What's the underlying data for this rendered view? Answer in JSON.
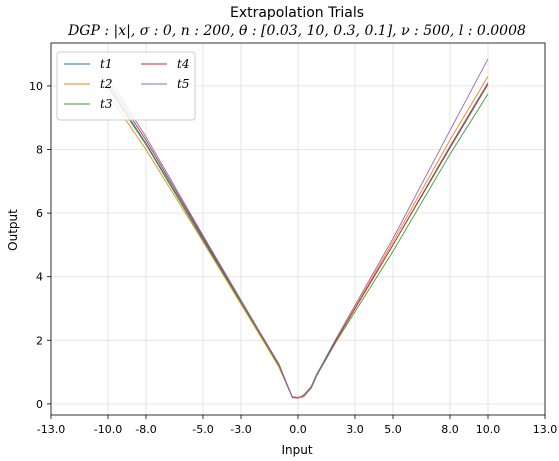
{
  "chart_data": {
    "type": "line",
    "title": "Extrapolation Trials",
    "subtitle": "DGP : |x|, σ : 0, n : 200, θ : [0.03, 10, 0.3, 0.1], ν : 500, l : 0.0008",
    "xlabel": "Input",
    "ylabel": "Output",
    "xlim": [
      -13,
      13
    ],
    "ylim": [
      -0.35,
      11.35
    ],
    "xticks": [
      -13,
      -10,
      -8,
      -5,
      -3,
      0,
      3,
      5,
      8,
      10,
      13
    ],
    "xtick_labels": [
      "-13.0",
      "-10.0",
      "-8.0",
      "-5.0",
      "-3.0",
      "0.0",
      "3.0",
      "5.0",
      "8.0",
      "10.0",
      "13.0"
    ],
    "yticks": [
      0,
      2,
      4,
      6,
      8,
      10
    ],
    "ytick_labels": [
      "0",
      "2",
      "4",
      "6",
      "8",
      "10"
    ],
    "grid": true,
    "legend_position": "top-left",
    "series": [
      {
        "name": "t1",
        "color": "#1f77b4",
        "x": [
          -10,
          -8,
          -5,
          -2,
          -1,
          -0.3,
          0,
          0.3,
          0.7,
          1,
          2,
          5,
          8,
          10
        ],
        "y": [
          10.0,
          8.2,
          5.2,
          2.2,
          1.2,
          0.22,
          0.2,
          0.25,
          0.55,
          0.95,
          2.0,
          5.0,
          8.1,
          10.1
        ]
      },
      {
        "name": "t2",
        "color": "#ff7f0e",
        "x": [
          -10,
          -8,
          -5,
          -2,
          -1,
          -0.3,
          0,
          0.3,
          0.7,
          1,
          2,
          5,
          8,
          10
        ],
        "y": [
          9.75,
          8.0,
          5.1,
          2.15,
          1.15,
          0.2,
          0.18,
          0.22,
          0.5,
          0.92,
          2.0,
          5.1,
          8.3,
          10.3
        ]
      },
      {
        "name": "t3",
        "color": "#2ca02c",
        "x": [
          -10,
          -8,
          -5,
          -2,
          -1,
          -0.3,
          0,
          0.3,
          0.7,
          1,
          2,
          5,
          8,
          10
        ],
        "y": [
          9.95,
          8.15,
          5.15,
          2.2,
          1.2,
          0.2,
          0.2,
          0.25,
          0.5,
          0.9,
          1.95,
          4.8,
          7.85,
          9.75
        ]
      },
      {
        "name": "t4",
        "color": "#d62728",
        "x": [
          -10,
          -8,
          -5,
          -2,
          -1,
          -0.3,
          0,
          0.3,
          0.7,
          1,
          2,
          5,
          8,
          10
        ],
        "y": [
          10.1,
          8.3,
          5.25,
          2.25,
          1.25,
          0.2,
          0.18,
          0.28,
          0.55,
          0.95,
          2.0,
          5.0,
          8.05,
          10.05
        ]
      },
      {
        "name": "t5",
        "color": "#9467bd",
        "x": [
          -10,
          -8,
          -5,
          -2,
          -1,
          -0.3,
          0,
          0.3,
          0.7,
          1,
          2,
          5,
          8,
          10
        ],
        "y": [
          10.25,
          8.4,
          5.3,
          2.25,
          1.25,
          0.22,
          0.2,
          0.25,
          0.55,
          0.95,
          2.05,
          5.2,
          8.6,
          10.85
        ]
      }
    ]
  }
}
